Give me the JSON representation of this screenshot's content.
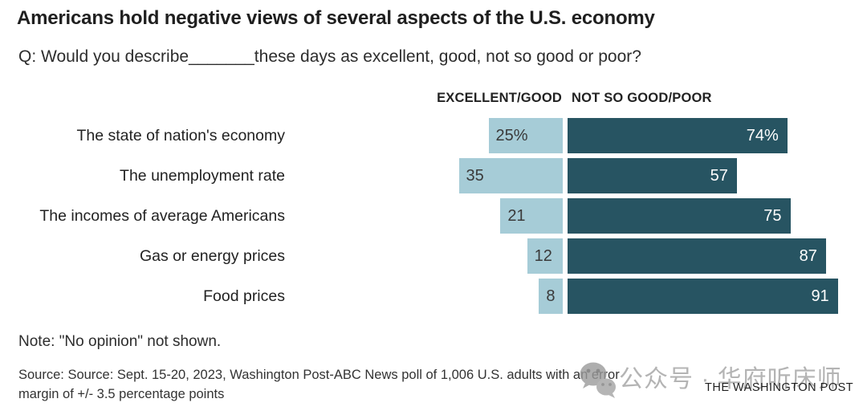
{
  "header": {
    "title": "Americans hold negative views of several aspects of the U.S. economy",
    "subtitle": "Q: Would you describe_______these days as excellent, good, not so good or poor?"
  },
  "chart_data": {
    "type": "bar",
    "orientation": "horizontal-paired",
    "title": "Americans hold negative views of several aspects of the U.S. economy",
    "categories": [
      "The state of nation's economy",
      "The unemployment rate",
      "The incomes of average Americans",
      "Gas or energy prices",
      "Food prices"
    ],
    "series": [
      {
        "name": "EXCELLENT/GOOD",
        "values": [
          25,
          35,
          21,
          12,
          8
        ],
        "display": [
          "25%",
          "35",
          "21",
          "12",
          "8"
        ],
        "color": "#a6ccd7",
        "label_color": "#3a3a3a",
        "align": "right-to-center"
      },
      {
        "name": "NOT SO GOOD/POOR",
        "values": [
          74,
          57,
          75,
          87,
          91
        ],
        "display": [
          "74%",
          "57",
          "75",
          "87",
          "91"
        ],
        "color": "#275462",
        "label_color": "#ffffff",
        "align": "left-from-center"
      }
    ],
    "xlim": [
      0,
      100
    ],
    "unit": "percent",
    "grid": false,
    "legend_position": "column-headers-above-bars"
  },
  "footer": {
    "note": "Note: \"No opinion\" not shown.",
    "source_line1": "Source: Source: Sept. 15-20, 2023, Washington Post-ABC News poll of 1,006 U.S. adults with an error",
    "source_line2": "margin of +/- 3.5 percentage points",
    "publisher": "THE WASHINGTON POST"
  },
  "watermark": {
    "icon": "wechat-icon",
    "text": "公众号 · 华府听床师"
  }
}
